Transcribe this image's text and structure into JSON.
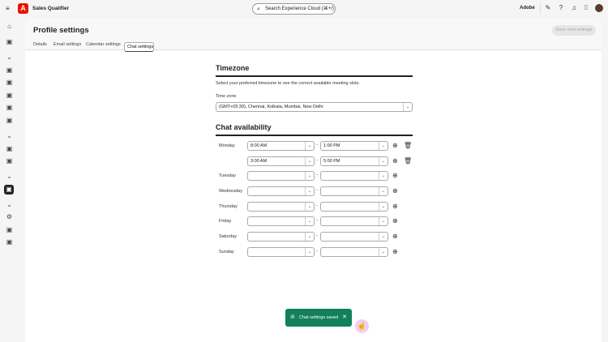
{
  "app": {
    "name": "Sales Qualifier",
    "logo": "A",
    "search_placeholder": "Search Experience Cloud (⌘+/)",
    "org": "Adobe"
  },
  "topbar_icons": [
    "feedback-icon",
    "help-icon",
    "bell-icon",
    "apps-grid-icon",
    "avatar"
  ],
  "sidebar_icons": [
    "home-icon",
    "accounts-icon",
    "chevron-down-icon",
    "list-icon",
    "link-icon",
    "inbox-icon",
    "calendar-icon",
    "analytics-icon",
    "chevron-down-icon",
    "report-icon",
    "calendar-check-icon",
    "chevron-down-icon",
    "user-settings-icon",
    "chevron-down-icon",
    "gear-icon",
    "automation-icon",
    "user-manage-icon"
  ],
  "page": {
    "title": "Profile settings",
    "tabs": [
      "Details",
      "Email settings",
      "Calendar settings",
      "Chat settings"
    ],
    "active_tab": "Chat settings",
    "save_label": "Save chat settings"
  },
  "timezone": {
    "heading": "Timezone",
    "description": "Select your preferred timezone to see the correct available meeting slots.",
    "label": "Time zone",
    "value": "(GMT+05:30), Chennai, Kolkata, Mumbai, New Delhi"
  },
  "availability": {
    "heading": "Chat availability",
    "rows": [
      {
        "day": "Monday",
        "start": "8:00 AM",
        "end": "1:00 PM",
        "delete": true
      },
      {
        "day": "",
        "start": "3:00 AM",
        "end": "5:00 PM",
        "delete": true
      },
      {
        "day": "Tuesday",
        "start": "",
        "end": "",
        "delete": false
      },
      {
        "day": "Wednesday",
        "start": "",
        "end": "",
        "delete": false
      },
      {
        "day": "Thursday",
        "start": "",
        "end": "",
        "delete": false
      },
      {
        "day": "Friday",
        "start": "",
        "end": "",
        "delete": false
      },
      {
        "day": "Saturday",
        "start": "",
        "end": "",
        "delete": false
      },
      {
        "day": "Sunday",
        "start": "",
        "end": "",
        "delete": false
      }
    ]
  },
  "toast": {
    "message": "Chat settings saved",
    "color": "#12805c"
  }
}
